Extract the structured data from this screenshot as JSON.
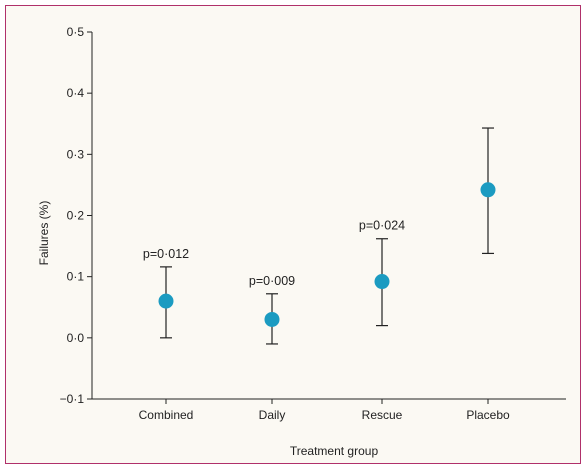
{
  "chart_data": {
    "type": "scatter",
    "title": "",
    "xlabel": "Treatment group",
    "ylabel": "Failures (%)",
    "categories": [
      "Combined",
      "Daily",
      "Rescue",
      "Placebo"
    ],
    "ylim": [
      -0.1,
      0.5
    ],
    "yticks": [
      "−0·1",
      "0·0",
      "0·1",
      "0·2",
      "0·3",
      "0·4",
      "0·5"
    ],
    "ytick_values": [
      -0.1,
      0.0,
      0.1,
      0.2,
      0.3,
      0.4,
      0.5
    ],
    "values": [
      0.06,
      0.03,
      0.092,
      0.242
    ],
    "err_low": [
      0.0,
      -0.01,
      0.02,
      0.138
    ],
    "err_high": [
      0.116,
      0.072,
      0.162,
      0.343
    ],
    "annotations": [
      "p=0·012",
      "p=0·009",
      "p=0·024",
      ""
    ],
    "marker_color": "#1b9bc1",
    "grid": false
  },
  "colors": {
    "border": "#b0306a",
    "background": "#fbf9f3"
  }
}
